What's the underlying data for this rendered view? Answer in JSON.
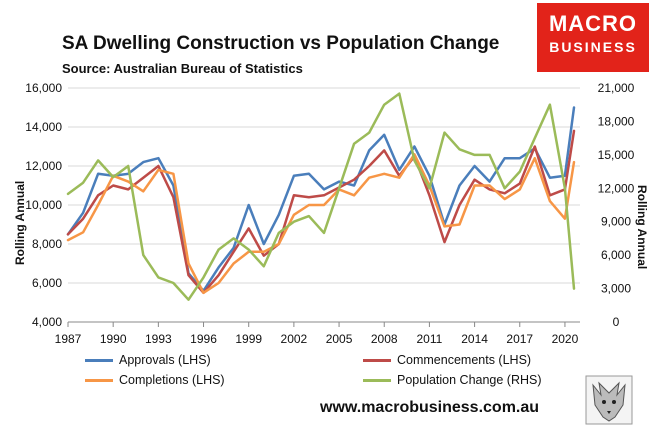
{
  "title": "SA Dwelling Construction vs Population Change",
  "subtitle": "Source: Australian Bureau of Statistics",
  "logo": {
    "line1": "MACRO",
    "line2": "BUSINESS",
    "color": "#e2231a"
  },
  "website": "www.macrobusiness.com.au",
  "chart_data": {
    "type": "line",
    "grid": "horizontal",
    "y_left": {
      "label": "Rolling Annual",
      "range": [
        4000,
        16000
      ],
      "ticks": [
        "4,000",
        "6,000",
        "8,000",
        "10,000",
        "12,000",
        "14,000",
        "16,000"
      ]
    },
    "y_right": {
      "label": "Rolling Annual",
      "range": [
        0,
        21000
      ],
      "ticks": [
        "0",
        "3,000",
        "6,000",
        "9,000",
        "12,000",
        "15,000",
        "18,000",
        "21,000"
      ]
    },
    "x_axis": {
      "range": [
        1987,
        2021
      ],
      "ticks": [
        "1987",
        "1990",
        "1993",
        "1996",
        "1999",
        "2002",
        "2005",
        "2008",
        "2011",
        "2014",
        "2017",
        "2020"
      ]
    },
    "legend_position": "bottom",
    "series": [
      {
        "name": "Approvals (LHS)",
        "axis": "left",
        "color": "#4a7ebb",
        "points": [
          [
            1987,
            8500
          ],
          [
            1988,
            9600
          ],
          [
            1989,
            11600
          ],
          [
            1990,
            11500
          ],
          [
            1991,
            11600
          ],
          [
            1992,
            12200
          ],
          [
            1993,
            12400
          ],
          [
            1994,
            11000
          ],
          [
            1995,
            6500
          ],
          [
            1996,
            5600
          ],
          [
            1997,
            6800
          ],
          [
            1998,
            7800
          ],
          [
            1999,
            10000
          ],
          [
            2000,
            8000
          ],
          [
            2001,
            9500
          ],
          [
            2002,
            11500
          ],
          [
            2003,
            11600
          ],
          [
            2004,
            10800
          ],
          [
            2005,
            11200
          ],
          [
            2006,
            11000
          ],
          [
            2007,
            12800
          ],
          [
            2008,
            13600
          ],
          [
            2009,
            11800
          ],
          [
            2010,
            13000
          ],
          [
            2011,
            11500
          ],
          [
            2012,
            9000
          ],
          [
            2013,
            11000
          ],
          [
            2014,
            12000
          ],
          [
            2015,
            11200
          ],
          [
            2016,
            12400
          ],
          [
            2017,
            12400
          ],
          [
            2018,
            12900
          ],
          [
            2019,
            11400
          ],
          [
            2020,
            11500
          ],
          [
            2020.6,
            15000
          ]
        ]
      },
      {
        "name": "Commencements (LHS)",
        "axis": "left",
        "color": "#be4b48",
        "points": [
          [
            1987,
            8500
          ],
          [
            1988,
            9300
          ],
          [
            1989,
            10500
          ],
          [
            1990,
            11000
          ],
          [
            1991,
            10800
          ],
          [
            1992,
            11400
          ],
          [
            1993,
            12000
          ],
          [
            1994,
            10400
          ],
          [
            1995,
            6400
          ],
          [
            1996,
            5500
          ],
          [
            1997,
            6400
          ],
          [
            1998,
            7600
          ],
          [
            1999,
            8800
          ],
          [
            2000,
            7400
          ],
          [
            2001,
            8000
          ],
          [
            2002,
            10500
          ],
          [
            2003,
            10400
          ],
          [
            2004,
            10500
          ],
          [
            2005,
            10900
          ],
          [
            2006,
            11300
          ],
          [
            2007,
            12000
          ],
          [
            2008,
            12800
          ],
          [
            2009,
            11500
          ],
          [
            2010,
            12500
          ],
          [
            2011,
            10500
          ],
          [
            2012,
            8100
          ],
          [
            2013,
            10000
          ],
          [
            2014,
            11300
          ],
          [
            2015,
            10800
          ],
          [
            2016,
            10600
          ],
          [
            2017,
            11100
          ],
          [
            2018,
            13000
          ],
          [
            2019,
            10500
          ],
          [
            2020,
            10800
          ],
          [
            2020.6,
            13800
          ]
        ]
      },
      {
        "name": "Completions (LHS)",
        "axis": "left",
        "color": "#f79646",
        "points": [
          [
            1987,
            8200
          ],
          [
            1988,
            8600
          ],
          [
            1989,
            10000
          ],
          [
            1990,
            11500
          ],
          [
            1991,
            11200
          ],
          [
            1992,
            10700
          ],
          [
            1993,
            11800
          ],
          [
            1994,
            11600
          ],
          [
            1995,
            7000
          ],
          [
            1996,
            5500
          ],
          [
            1997,
            6000
          ],
          [
            1998,
            7000
          ],
          [
            1999,
            7600
          ],
          [
            2000,
            7600
          ],
          [
            2001,
            8000
          ],
          [
            2002,
            9500
          ],
          [
            2003,
            10000
          ],
          [
            2004,
            10000
          ],
          [
            2005,
            10800
          ],
          [
            2006,
            10500
          ],
          [
            2007,
            11400
          ],
          [
            2008,
            11600
          ],
          [
            2009,
            11400
          ],
          [
            2010,
            12600
          ],
          [
            2011,
            11000
          ],
          [
            2012,
            8900
          ],
          [
            2013,
            9000
          ],
          [
            2014,
            11000
          ],
          [
            2015,
            11000
          ],
          [
            2016,
            10300
          ],
          [
            2017,
            10800
          ],
          [
            2018,
            12400
          ],
          [
            2019,
            10200
          ],
          [
            2020,
            9300
          ],
          [
            2020.6,
            12200
          ]
        ]
      },
      {
        "name": "Population Change (RHS)",
        "axis": "right",
        "color": "#9bbb59",
        "points": [
          [
            1987,
            11500
          ],
          [
            1988,
            12500
          ],
          [
            1989,
            14500
          ],
          [
            1990,
            13000
          ],
          [
            1991,
            14000
          ],
          [
            1992,
            6000
          ],
          [
            1993,
            4000
          ],
          [
            1994,
            3500
          ],
          [
            1995,
            2000
          ],
          [
            1996,
            4000
          ],
          [
            1997,
            6500
          ],
          [
            1998,
            7500
          ],
          [
            1999,
            6500
          ],
          [
            2000,
            5000
          ],
          [
            2001,
            8000
          ],
          [
            2002,
            9000
          ],
          [
            2003,
            9500
          ],
          [
            2004,
            8000
          ],
          [
            2005,
            12000
          ],
          [
            2006,
            16000
          ],
          [
            2007,
            17000
          ],
          [
            2008,
            19500
          ],
          [
            2009,
            20500
          ],
          [
            2010,
            14500
          ],
          [
            2011,
            12000
          ],
          [
            2012,
            17000
          ],
          [
            2013,
            15500
          ],
          [
            2014,
            15000
          ],
          [
            2015,
            15000
          ],
          [
            2016,
            12000
          ],
          [
            2017,
            13500
          ],
          [
            2018,
            16500
          ],
          [
            2019,
            19500
          ],
          [
            2020,
            12000
          ],
          [
            2020.6,
            3000
          ]
        ]
      }
    ]
  }
}
